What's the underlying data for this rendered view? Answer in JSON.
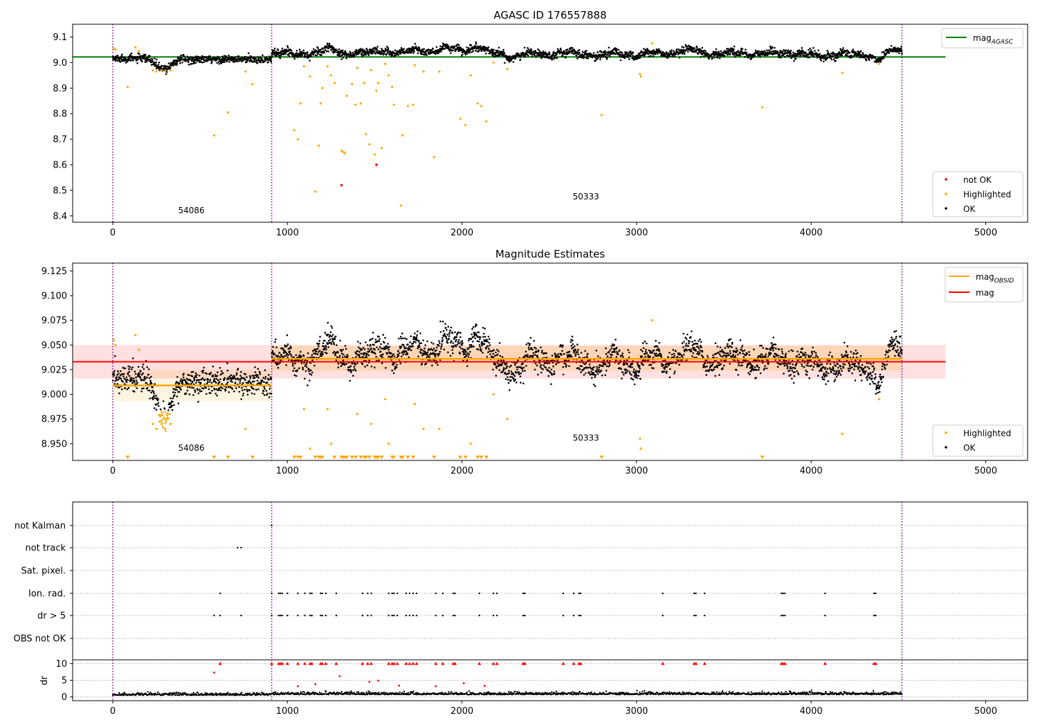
{
  "panel1": {
    "title": "AGASC ID 176557888",
    "ylim": [
      8.375,
      9.15
    ],
    "yticks": [
      "9.1",
      "9.0",
      "8.9",
      "8.8",
      "8.7",
      "8.6",
      "8.5",
      "8.4"
    ],
    "legend_top": {
      "label": "mag",
      "sub": "AGASC"
    },
    "legend_bottom": [
      "not OK",
      "Highlighted",
      "OK"
    ],
    "obsid_labels": [
      {
        "text": "54086",
        "x": 450,
        "y": 8.41
      },
      {
        "text": "50333",
        "x": 2710,
        "y": 8.465
      }
    ]
  },
  "panel2": {
    "title": "Magnitude Estimates",
    "ylim": [
      8.933,
      9.133
    ],
    "yticks": [
      "9.125",
      "9.100",
      "9.075",
      "9.050",
      "9.025",
      "9.000",
      "8.975",
      "8.950"
    ],
    "legend_top": [
      {
        "label": "mag",
        "sub": "OBSID"
      },
      {
        "label": "mag",
        "sub": ""
      }
    ],
    "legend_bottom": [
      "Highlighted",
      "OK"
    ],
    "obsid_labels": [
      {
        "text": "54086",
        "x": 450,
        "y": 8.943
      },
      {
        "text": "50333",
        "x": 2710,
        "y": 8.953
      }
    ]
  },
  "panel3": {
    "flag_rows": [
      "not Kalman",
      "not track",
      "Sat. pixel.",
      "Ion. rad.",
      "dr > 5",
      "OBS not OK"
    ],
    "dr_label": "dr",
    "dr_ticks": [
      "10",
      "5",
      "0"
    ]
  },
  "xaxis": {
    "ticks": [
      "0",
      "1000",
      "2000",
      "3000",
      "4000",
      "5000"
    ]
  },
  "colors": {
    "ok": "#000000",
    "highlighted": "#ffa500",
    "not_ok": "#ff0000",
    "agasc_line": "#008000",
    "obsid_line": "#ffa500",
    "mag_line": "#ff0000",
    "boundary": "#800080"
  },
  "chart_data": [
    {
      "type": "scatter",
      "title": "AGASC ID 176557888",
      "xlim": [
        -230,
        5240
      ],
      "ylim": [
        8.375,
        9.15
      ],
      "obsid_boundaries": [
        0,
        910,
        4520
      ],
      "agasc_mag": 9.022,
      "agasc_mag_xrange": [
        -230,
        4770
      ],
      "series": [
        {
          "name": "OK",
          "description": "dense time series, approx 9.02 (obsid 54086) rising to ~9.04 (obsid 50333)"
        },
        {
          "name": "Highlighted",
          "points": [
            [
              5,
              9.055
            ],
            [
              15,
              9.05
            ],
            [
              85,
              8.905
            ],
            [
              130,
              9.06
            ],
            [
              150,
              9.045
            ],
            [
              230,
              8.97
            ],
            [
              250,
              8.965
            ],
            [
              280,
              8.97
            ],
            [
              300,
              8.965
            ],
            [
              330,
              8.97
            ],
            [
              580,
              8.715
            ],
            [
              660,
              8.805
            ],
            [
              760,
              8.965
            ],
            [
              800,
              8.915
            ],
            [
              1040,
              8.735
            ],
            [
              1060,
              8.7
            ],
            [
              1075,
              8.84
            ],
            [
              1095,
              8.985
            ],
            [
              1130,
              8.945
            ],
            [
              1160,
              8.495
            ],
            [
              1180,
              8.675
            ],
            [
              1190,
              8.84
            ],
            [
              1200,
              8.9
            ],
            [
              1230,
              8.985
            ],
            [
              1250,
              8.95
            ],
            [
              1270,
              8.92
            ],
            [
              1310,
              8.655
            ],
            [
              1320,
              8.65
            ],
            [
              1330,
              8.645
            ],
            [
              1340,
              8.87
            ],
            [
              1370,
              8.915
            ],
            [
              1390,
              8.835
            ],
            [
              1400,
              8.98
            ],
            [
              1420,
              8.84
            ],
            [
              1440,
              8.92
            ],
            [
              1450,
              8.72
            ],
            [
              1470,
              8.68
            ],
            [
              1480,
              8.97
            ],
            [
              1500,
              8.64
            ],
            [
              1510,
              8.89
            ],
            [
              1520,
              8.92
            ],
            [
              1540,
              8.665
            ],
            [
              1560,
              8.995
            ],
            [
              1580,
              8.95
            ],
            [
              1600,
              8.905
            ],
            [
              1610,
              8.835
            ],
            [
              1650,
              8.44
            ],
            [
              1660,
              8.715
            ],
            [
              1690,
              8.83
            ],
            [
              1720,
              8.835
            ],
            [
              1730,
              8.99
            ],
            [
              1780,
              8.965
            ],
            [
              1840,
              8.63
            ],
            [
              1870,
              8.965
            ],
            [
              1990,
              8.78
            ],
            [
              2020,
              8.755
            ],
            [
              2050,
              8.95
            ],
            [
              2090,
              8.84
            ],
            [
              2110,
              8.83
            ],
            [
              2140,
              8.77
            ],
            [
              2180,
              9.0
            ],
            [
              2260,
              8.975
            ],
            [
              2800,
              8.795
            ],
            [
              3020,
              8.955
            ],
            [
              3025,
              8.945
            ],
            [
              3090,
              9.075
            ],
            [
              3720,
              8.825
            ],
            [
              4180,
              8.96
            ],
            [
              4390,
              8.995
            ]
          ]
        },
        {
          "name": "not OK",
          "points": [
            [
              1310,
              8.52
            ],
            [
              1510,
              8.6
            ]
          ]
        }
      ]
    },
    {
      "type": "scatter",
      "title": "Magnitude Estimates",
      "xlim": [
        -230,
        5240
      ],
      "ylim": [
        8.933,
        9.133
      ],
      "series": [
        {
          "name": "mag OBSID",
          "segments": [
            {
              "x": [
                0,
                910
              ],
              "y": 9.009
            },
            {
              "x": [
                910,
                4520
              ],
              "y": 9.036
            }
          ]
        },
        {
          "name": "mag",
          "y": 9.033,
          "x": [
            -230,
            4770
          ],
          "band": [
            9.016,
            9.05
          ]
        },
        {
          "name": "Highlighted",
          "description": "points near 8.96-8.98 around x 230-340, outliers above 9.06 and off-scale markers at bottom"
        },
        {
          "name": "OK",
          "description": "dense time series approx 9.01-9.06"
        }
      ]
    },
    {
      "type": "scatter",
      "title": "",
      "categories": [
        "not Kalman",
        "not track",
        "Sat. pixel.",
        "Ion. rad.",
        "dr > 5",
        "OBS not OK"
      ],
      "ion_rad_x": [
        615,
        910,
        950,
        960,
        970,
        1000,
        1060,
        1100,
        1130,
        1140,
        1190,
        1200,
        1220,
        1280,
        1430,
        1460,
        1480,
        1580,
        1600,
        1610,
        1630,
        1680,
        1700,
        1720,
        1740,
        1850,
        1890,
        1950,
        1960,
        2100,
        2180,
        2200,
        2350,
        2360,
        2580,
        2640,
        2670,
        2680,
        3150,
        3330,
        3340,
        3390,
        3830,
        3840,
        3850,
        4080,
        4360,
        4370
      ],
      "not_track_x": [
        715,
        735
      ],
      "dr": {
        "ylim": [
          -0.5,
          10.5
        ],
        "yticks": [
          0,
          5,
          10
        ],
        "typical": 0.5
      }
    }
  ]
}
